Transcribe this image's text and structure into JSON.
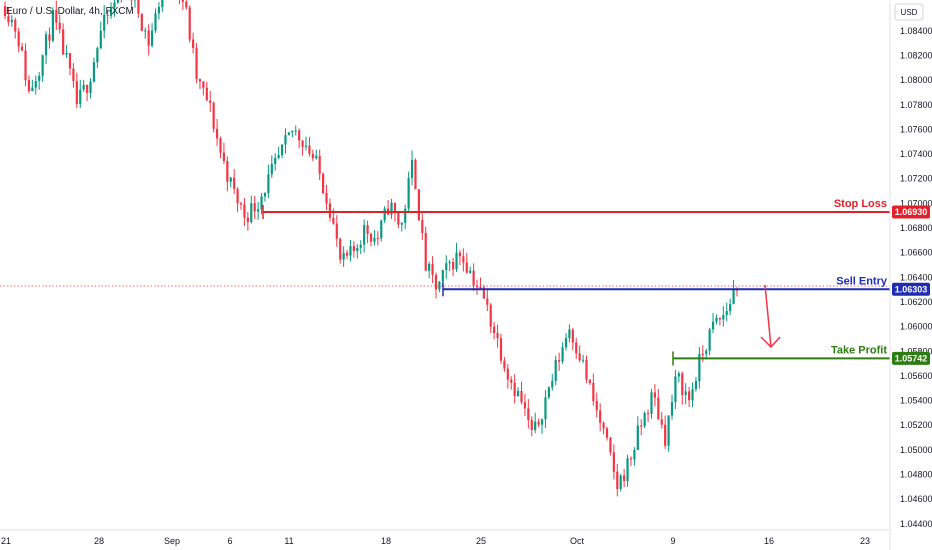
{
  "symbol": "Euro / U.S. Dollar, 4h, FXCM",
  "currency": "USD",
  "colors": {
    "up": "#089981",
    "down": "#f23645",
    "stop": "#e0212b",
    "entry": "#1f2db3",
    "profit": "#2e7d12",
    "last": "#f23645"
  },
  "chart_data": {
    "type": "candlestick",
    "ylim": [
      1.0435,
      1.0865
    ],
    "y_ticks": [
      "1.08400",
      "1.08200",
      "1.08000",
      "1.07800",
      "1.07600",
      "1.07400",
      "1.07200",
      "1.07000",
      "1.06800",
      "1.06600",
      "1.06400",
      "1.06200",
      "1.06000",
      "1.05800",
      "1.05600",
      "1.05400",
      "1.05200",
      "1.05000",
      "1.04800",
      "1.04600",
      "1.04400"
    ],
    "x_ticks": [
      "21",
      "28",
      "Sep",
      "6",
      "11",
      "18",
      "25",
      "Oct",
      "9",
      "16",
      "23"
    ],
    "levels": [
      {
        "name": "Stop Loss",
        "value": "1.06930"
      },
      {
        "name": "Sell Entry",
        "value": "1.06303"
      },
      {
        "name": "Take Profit",
        "value": "1.05742"
      }
    ],
    "path": [
      1.086,
      1.084,
      1.079,
      1.0815,
      1.085,
      1.082,
      1.078,
      1.08,
      1.084,
      1.086,
      1.088,
      1.086,
      1.083,
      1.087,
      1.089,
      1.086,
      1.08,
      1.078,
      1.074,
      1.071,
      1.069,
      1.07,
      1.072,
      1.074,
      1.076,
      1.075,
      1.073,
      1.07,
      1.065,
      1.066,
      1.068,
      1.067,
      1.07,
      1.068,
      1.0735,
      1.065,
      1.063,
      1.065,
      1.066,
      1.064,
      1.062,
      1.059,
      1.056,
      1.054,
      1.051,
      1.054,
      1.057,
      1.06,
      1.0575,
      1.054,
      1.051,
      1.047,
      1.049,
      1.052,
      1.0545,
      1.051,
      1.056,
      1.054,
      1.0575,
      1.06,
      1.061,
      1.0635
    ]
  }
}
